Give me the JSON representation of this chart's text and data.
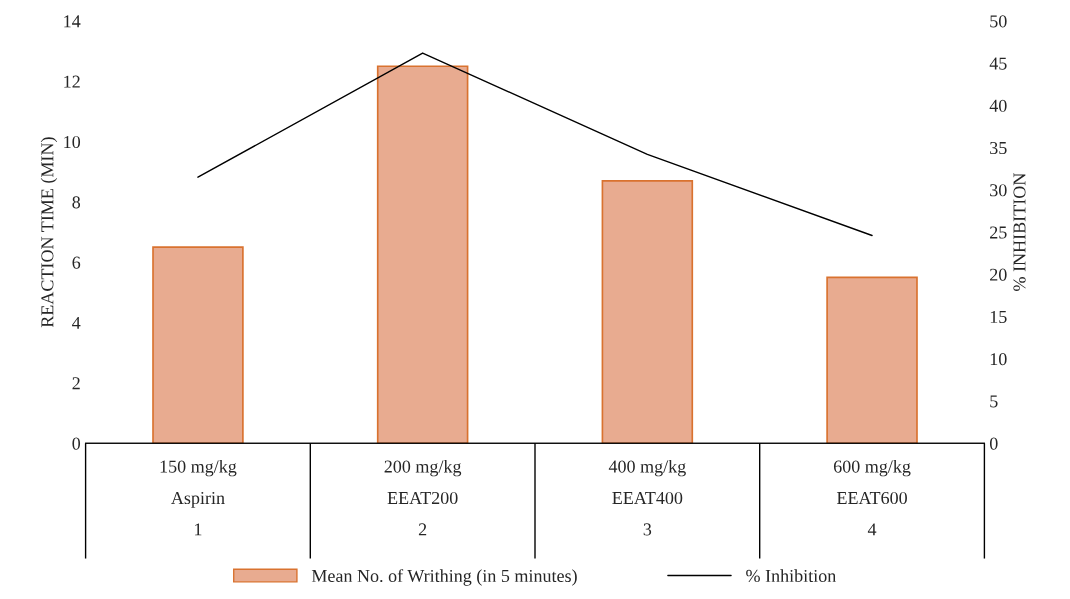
{
  "chart_data": {
    "type": "bar",
    "ylabel": "REACTION TIME (MIN)",
    "y2label": "% INHIBITION",
    "categories": [
      "150 mg/kg\nAspirin\n1",
      "200 mg/kg\nEEAT200\n2",
      "400 mg/kg\nEEAT400\n3",
      "600 mg/kg\nEEAT600\n4"
    ],
    "series": [
      {
        "name": "Mean No. of Writhing (in 5 minutes)",
        "color": "#e8ab90",
        "values": [
          6.5,
          12.5,
          8.7,
          5.5
        ]
      },
      {
        "name": "% Inhibition",
        "type": "line",
        "axis": "y2",
        "color": "#000000",
        "values": [
          31.5,
          46.2,
          34.2,
          24.6
        ]
      }
    ],
    "ylim": [
      0,
      14
    ],
    "yticks": [
      0,
      2,
      4,
      6,
      8,
      10,
      12,
      14
    ],
    "y2lim": [
      0,
      50
    ],
    "y2ticks": [
      0,
      5,
      10,
      15,
      20,
      25,
      30,
      35,
      40,
      45,
      50
    ],
    "grid": false,
    "legend": "bottom",
    "marker": "none",
    "line_style": "solid"
  }
}
